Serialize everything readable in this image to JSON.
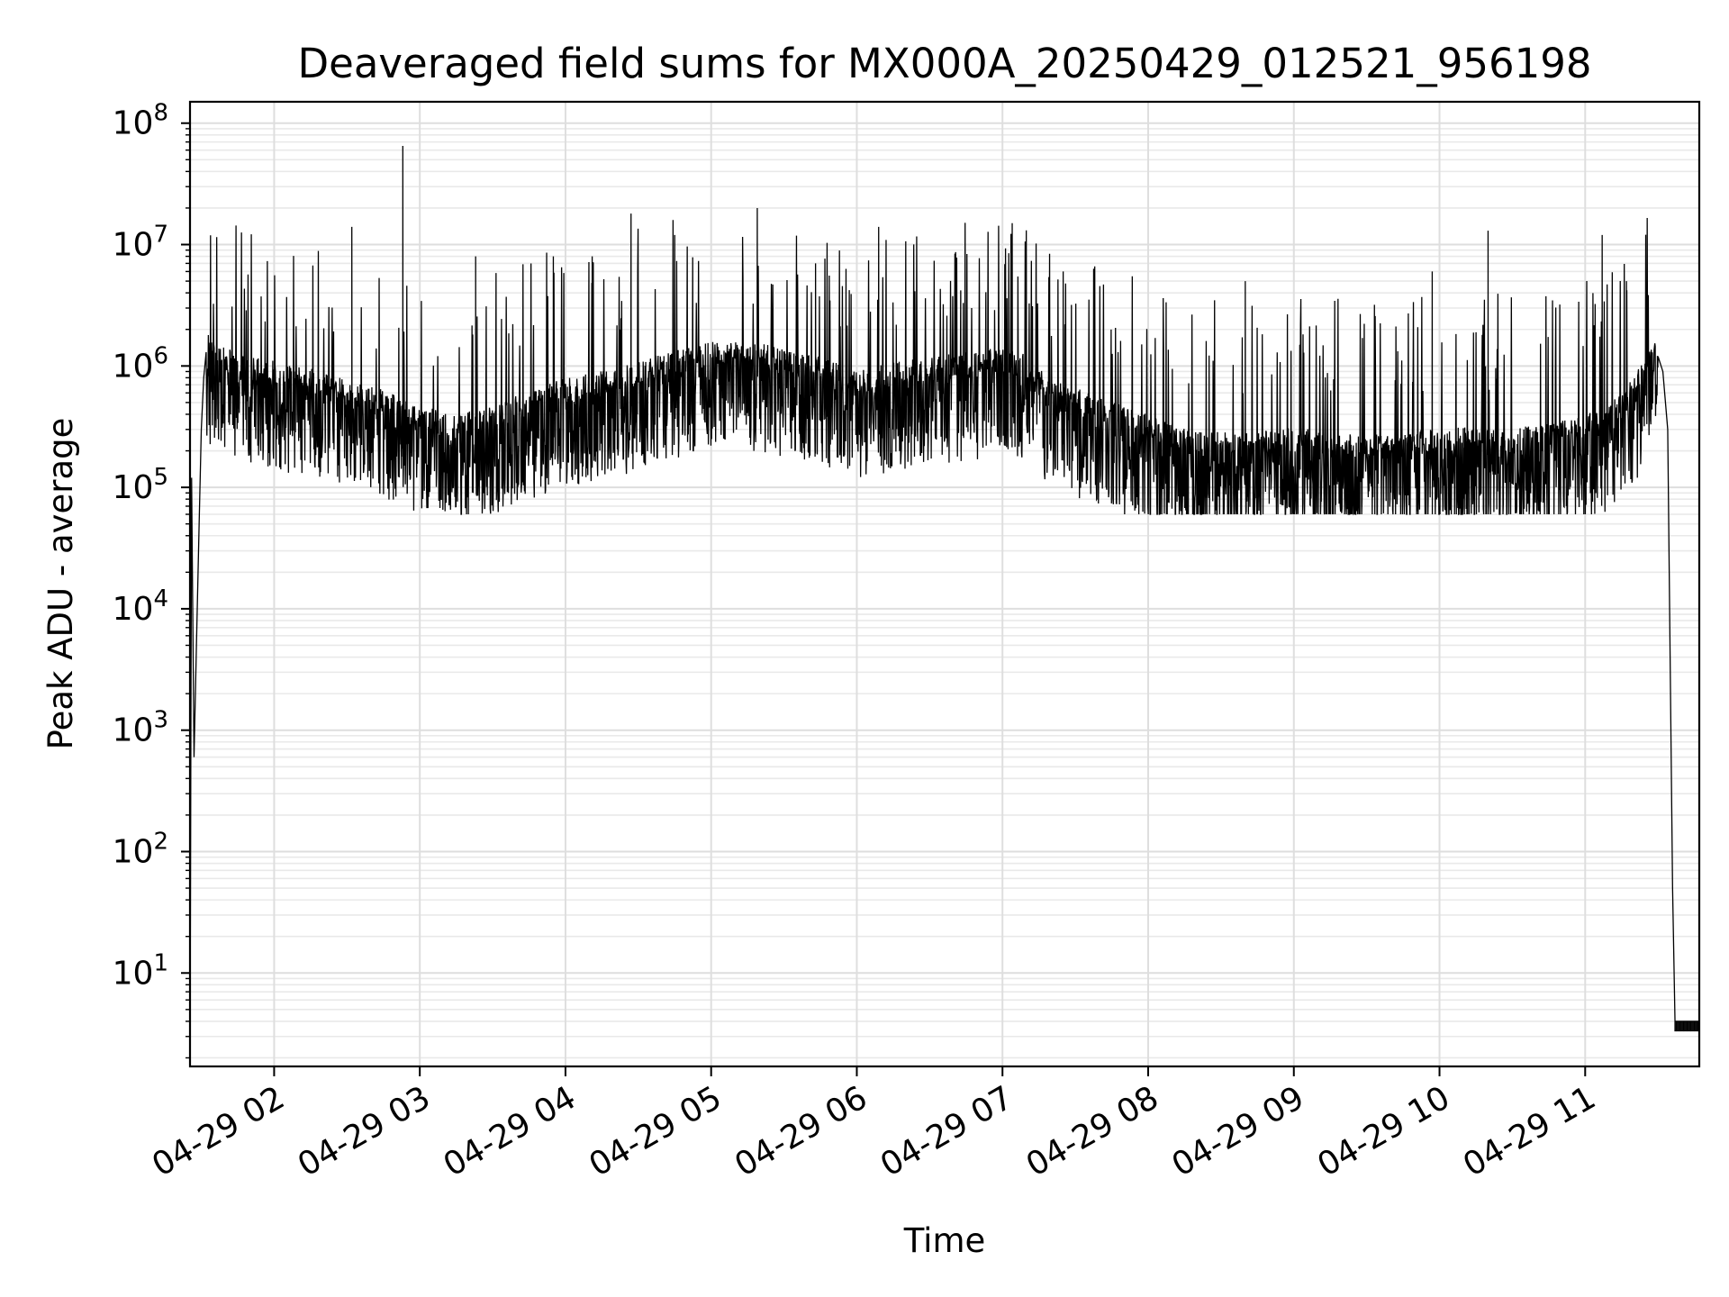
{
  "chart_data": {
    "type": "line",
    "title": "Deaveraged field sums for MX000A_20250429_012521_956198",
    "xlabel": "Time",
    "ylabel": "Peak ADU - average",
    "x_type": "datetime",
    "xlim": [
      "2025-04-29T01:25:21",
      "2025-04-29T11:47:00"
    ],
    "ylim": [
      1.7,
      150000000
    ],
    "y_scale": "log",
    "grid": true,
    "grid_minor": true,
    "line_color": "#000000",
    "x_ticks": [
      {
        "value": "2025-04-29T02:00:00",
        "label": "04-29 02"
      },
      {
        "value": "2025-04-29T03:00:00",
        "label": "04-29 03"
      },
      {
        "value": "2025-04-29T04:00:00",
        "label": "04-29 04"
      },
      {
        "value": "2025-04-29T05:00:00",
        "label": "04-29 05"
      },
      {
        "value": "2025-04-29T06:00:00",
        "label": "04-29 06"
      },
      {
        "value": "2025-04-29T07:00:00",
        "label": "04-29 07"
      },
      {
        "value": "2025-04-29T08:00:00",
        "label": "04-29 08"
      },
      {
        "value": "2025-04-29T09:00:00",
        "label": "04-29 09"
      },
      {
        "value": "2025-04-29T10:00:00",
        "label": "04-29 10"
      },
      {
        "value": "2025-04-29T11:00:00",
        "label": "04-29 11"
      }
    ],
    "y_ticks": [
      {
        "value": 10,
        "base": "10",
        "exp": "1"
      },
      {
        "value": 100,
        "base": "10",
        "exp": "2"
      },
      {
        "value": 1000,
        "base": "10",
        "exp": "3"
      },
      {
        "value": 10000,
        "base": "10",
        "exp": "4"
      },
      {
        "value": 100000,
        "base": "10",
        "exp": "5"
      },
      {
        "value": 1000000,
        "base": "10",
        "exp": "6"
      },
      {
        "value": 10000000,
        "base": "10",
        "exp": "7"
      },
      {
        "value": 100000000,
        "base": "10",
        "exp": "8"
      }
    ],
    "series": [
      {
        "baseline": {
          "x": [
            "2025-04-29T01:25:21",
            "2025-04-29T01:26:00",
            "2025-04-29T01:27:00",
            "2025-04-29T01:28:00",
            "2025-04-29T01:29:00",
            "2025-04-29T01:30:00",
            "2025-04-29T01:31:00",
            "2025-04-29T01:32:00",
            "2025-04-29T01:34:00",
            "2025-04-29T01:37:00",
            "2025-04-29T01:40:00",
            "2025-04-29T01:45:00",
            "2025-04-29T02:00:00",
            "2025-04-29T02:15:00",
            "2025-04-29T02:30:00",
            "2025-04-29T02:45:00",
            "2025-04-29T03:00:00",
            "2025-04-29T03:15:00",
            "2025-04-29T03:30:00",
            "2025-04-29T03:45:00",
            "2025-04-29T04:00:00",
            "2025-04-29T04:20:00",
            "2025-04-29T04:40:00",
            "2025-04-29T05:00:00",
            "2025-04-29T05:20:00",
            "2025-04-29T05:40:00",
            "2025-04-29T06:00:00",
            "2025-04-29T06:20:00",
            "2025-04-29T06:40:00",
            "2025-04-29T07:00:00",
            "2025-04-29T07:10:00",
            "2025-04-29T07:20:00",
            "2025-04-29T07:40:00",
            "2025-04-29T08:00:00",
            "2025-04-29T08:20:00",
            "2025-04-29T08:40:00",
            "2025-04-29T09:00:00",
            "2025-04-29T09:20:00",
            "2025-04-29T09:40:00",
            "2025-04-29T10:00:00",
            "2025-04-29T10:20:00",
            "2025-04-29T10:40:00",
            "2025-04-29T11:00:00",
            "2025-04-29T11:10:00",
            "2025-04-29T11:20:00",
            "2025-04-29T11:28:00",
            "2025-04-29T11:30:00",
            "2025-04-29T11:32:00",
            "2025-04-29T11:34:00",
            "2025-04-29T11:36:00",
            "2025-04-29T11:37:00",
            "2025-04-29T11:40:00",
            "2025-04-29T11:47:00"
          ],
          "y": [
            2,
            120000,
            600,
            5000,
            40000,
            300000,
            800000,
            1300000,
            1000000,
            900000,
            900000,
            800000,
            700000,
            600000,
            500000,
            400000,
            300000,
            250000,
            300000,
            400000,
            500000,
            600000,
            800000,
            1000000,
            1000000,
            800000,
            600000,
            700000,
            800000,
            900000,
            800000,
            500000,
            350000,
            250000,
            180000,
            180000,
            200000,
            180000,
            170000,
            200000,
            200000,
            200000,
            250000,
            300000,
            500000,
            1100000,
            1200000,
            900000,
            300000,
            50,
            4,
            4,
            4
          ]
        },
        "spread_lo": [
          0.7,
          0.2,
          0.3
        ],
        "spikes": [
          {
            "x": "2025-04-29T02:53:00",
            "y": 65000000
          },
          {
            "x": "2025-04-29T04:27:00",
            "y": 18000000
          },
          {
            "x": "2025-04-29T05:19:00",
            "y": 20000000
          },
          {
            "x": "2025-04-29T07:04:00",
            "y": 15000000
          },
          {
            "x": "2025-04-29T06:09:00",
            "y": 14000000
          },
          {
            "x": "2025-04-29T02:32:00",
            "y": 14000000
          },
          {
            "x": "2025-04-29T04:45:00",
            "y": 12000000
          },
          {
            "x": "2025-04-29T10:20:00",
            "y": 13000000
          },
          {
            "x": "2025-04-29T11:07:00",
            "y": 12000000
          },
          {
            "x": "2025-04-29T03:23:00",
            "y": 8000000
          },
          {
            "x": "2025-04-29T03:55:00",
            "y": 8000000
          },
          {
            "x": "2025-04-29T04:11:00",
            "y": 8000000
          },
          {
            "x": "2025-04-29T05:43:00",
            "y": 7000000
          },
          {
            "x": "2025-04-29T07:25:00",
            "y": 6000000
          },
          {
            "x": "2025-04-29T08:40:00",
            "y": 5000000
          },
          {
            "x": "2025-04-29T09:57:00",
            "y": 6000000
          },
          {
            "x": "2025-04-29T11:17:00",
            "y": 5000000
          }
        ]
      }
    ]
  }
}
